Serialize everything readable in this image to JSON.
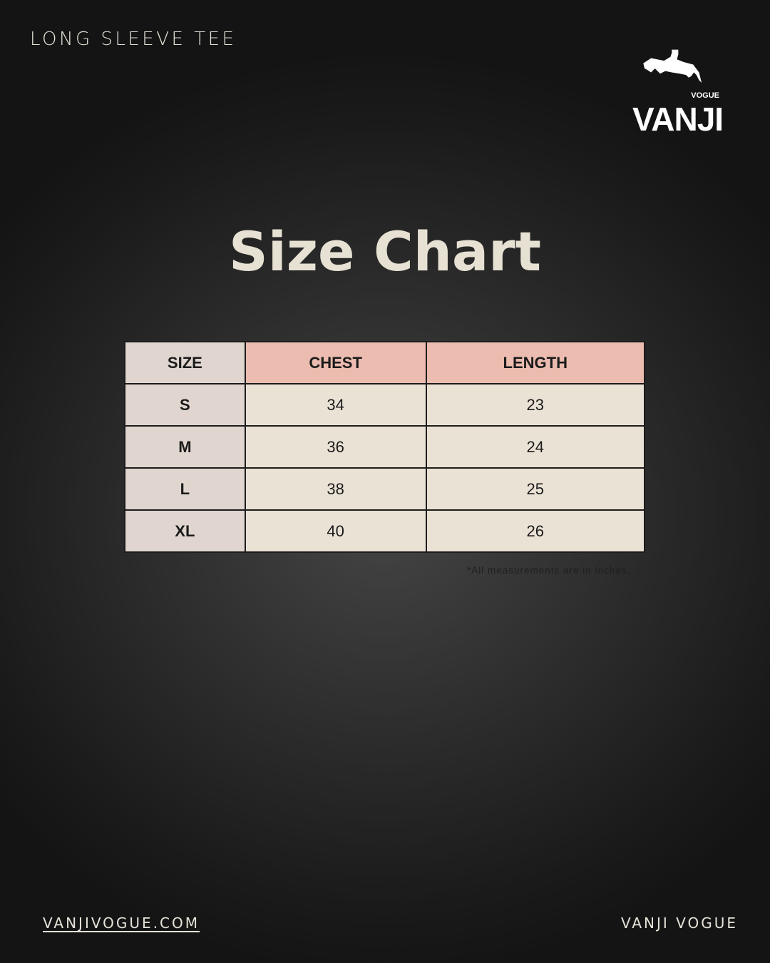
{
  "header": {
    "subtitle": "LONG SLEEVE TEE"
  },
  "logo": {
    "text": "VANJI",
    "subtext": "VOGUE",
    "icon": "show-jumping-horse-icon"
  },
  "title": "Size Chart",
  "table": {
    "headers": [
      "SIZE",
      "CHEST",
      "LENGTH"
    ],
    "rows": [
      [
        "S",
        "34",
        "23"
      ],
      [
        "M",
        "36",
        "24"
      ],
      [
        "L",
        "38",
        "25"
      ],
      [
        "XL",
        "40",
        "26"
      ]
    ]
  },
  "note": "*All measurements are in inches.",
  "footer": {
    "website": "VANJIVOGUE.COM",
    "brand": "VANJI VOGUE"
  },
  "colors": {
    "size_column": "#e0d6cf",
    "measure_header": "#ebbcaf",
    "cell": "#ebe2d6",
    "text_light": "#e6e1d3"
  }
}
